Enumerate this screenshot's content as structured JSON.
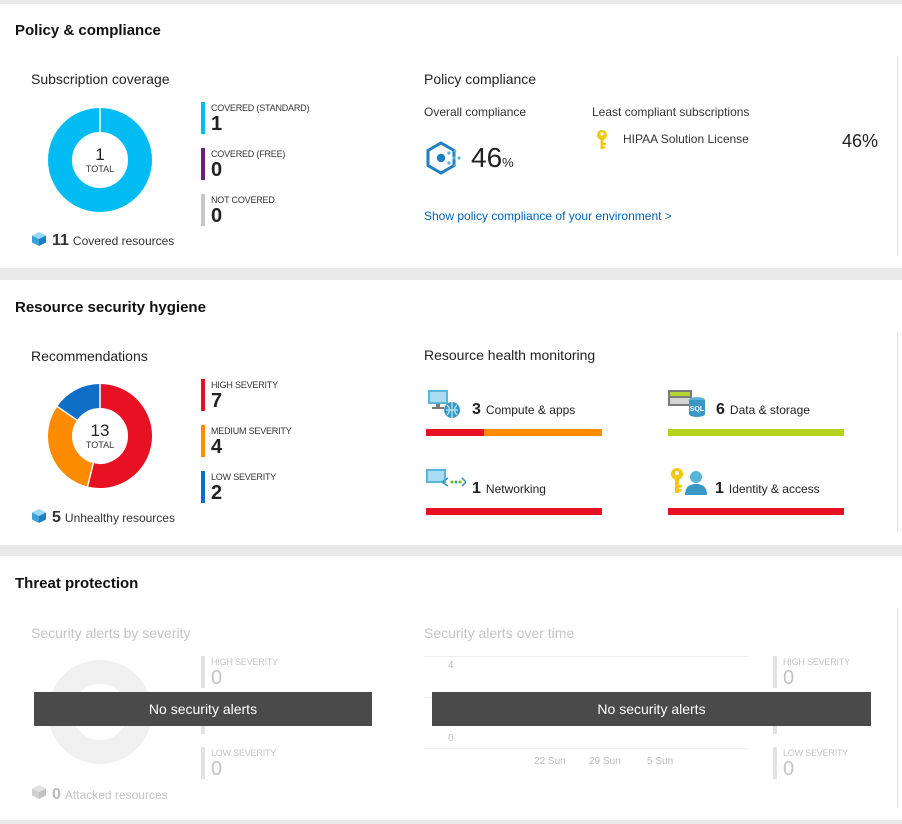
{
  "policy": {
    "title": "Policy & compliance",
    "coverage": {
      "title": "Subscription coverage",
      "donut": {
        "value": "1",
        "label": "TOTAL"
      },
      "legend": [
        {
          "label": "COVERED (STANDARD)",
          "value": "1",
          "color": "#00bcf2"
        },
        {
          "label": "COVERED (FREE)",
          "value": "0",
          "color": "#68217a"
        },
        {
          "label": "NOT COVERED",
          "value": "0",
          "color": "#c8c8c8"
        }
      ],
      "resources_count": "11",
      "resources_label": "Covered resources"
    },
    "compliance": {
      "title": "Policy compliance",
      "overall_label": "Overall compliance",
      "overall_value": "46",
      "overall_unit": "%",
      "least_label": "Least compliant subscriptions",
      "subscription_name": "HIPAA Solution License",
      "subscription_value": "46%",
      "link_text": "Show policy compliance of your environment >"
    }
  },
  "hygiene": {
    "title": "Resource security hygiene",
    "recommendations": {
      "title": "Recommendations",
      "donut": {
        "value": "13",
        "label": "TOTAL"
      },
      "legend": [
        {
          "label": "HIGH SEVERITY",
          "value": "7",
          "color": "#e81123"
        },
        {
          "label": "MEDIUM SEVERITY",
          "value": "4",
          "color": "#ff8c00"
        },
        {
          "label": "LOW SEVERITY",
          "value": "2",
          "color": "#0f6fc6"
        }
      ],
      "resources_count": "5",
      "resources_label": "Unhealthy resources"
    },
    "health": {
      "title": "Resource health monitoring",
      "items": [
        {
          "count": "3",
          "label": "Compute & apps"
        },
        {
          "count": "6",
          "label": "Data & storage"
        },
        {
          "count": "1",
          "label": "Networking"
        },
        {
          "count": "1",
          "label": "Identity & access"
        }
      ],
      "colors": {
        "red": "#e81123",
        "orange": "#ff8c00",
        "green": "#b5d21f"
      }
    }
  },
  "threat": {
    "title": "Threat protection",
    "by_severity": {
      "title": "Security alerts by severity",
      "legend": [
        {
          "label": "HIGH SEVERITY",
          "value": "0"
        },
        {
          "label": "LOW SEVERITY",
          "value": "0"
        }
      ],
      "resources_count": "0",
      "resources_label": "Attacked resources",
      "overlay": "No security alerts"
    },
    "over_time": {
      "title": "Security alerts over time",
      "y_ticks": [
        "4",
        "0"
      ],
      "x_ticks": [
        "22 Sun",
        "29 Sun",
        "5 Sun"
      ],
      "legend": [
        {
          "label": "HIGH SEVERITY",
          "value": "0"
        },
        {
          "label": "LOW SEVERITY",
          "value": "0"
        }
      ],
      "overlay": "No security alerts"
    }
  }
}
